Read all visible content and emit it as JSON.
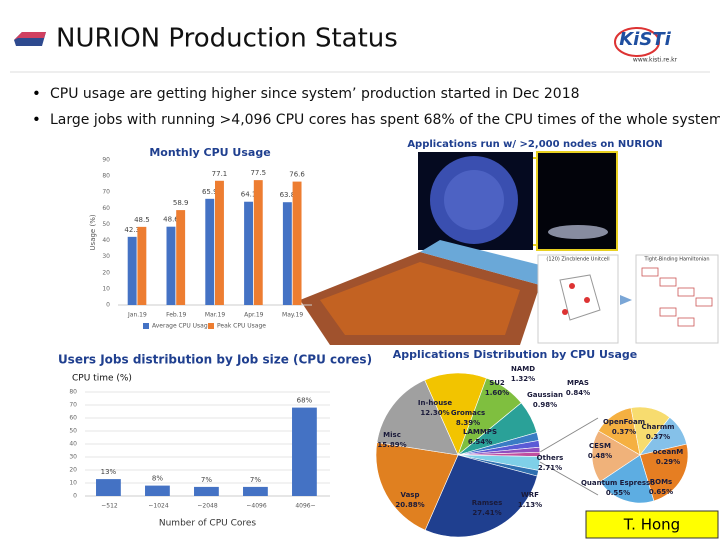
{
  "header": {
    "title": "NURION Production Status",
    "logo": "KiSTi",
    "logo_url": "www.kisti.re.kr"
  },
  "bullets": [
    "CPU usage are getting higher since system’ production started in Dec 2018",
    "Large jobs with running >4,096 CPU cores has spent 68% of the CPU times of the whole system"
  ],
  "images": {
    "caption": "Applications run w/ >2,000 nodes on NURION",
    "labels": [
      "(120) Zincblende Unitcell",
      "Tight-Binding Hamiltonian"
    ]
  },
  "footer": "T. Hong",
  "chart_data": [
    {
      "type": "bar",
      "title": "Monthly CPU Usage",
      "y_label": "Usage (%)",
      "categories": [
        "Jan.19",
        "Feb.19",
        "Mar.19",
        "Apr.19",
        "May.19"
      ],
      "series": [
        {
          "name": "Average CPU Usage",
          "color": "#4472c4",
          "values": [
            42.3,
            48.6,
            65.9,
            64.1,
            63.8
          ]
        },
        {
          "name": "Peak CPU Usage",
          "color": "#ed7d31",
          "values": [
            48.5,
            58.9,
            77.1,
            77.5,
            76.6
          ]
        }
      ],
      "ylim": [
        0,
        90
      ],
      "yticks": [
        0,
        10,
        20,
        30,
        40,
        50,
        60,
        70,
        80,
        90
      ],
      "grid": false
    },
    {
      "type": "bar",
      "title": "Users Jobs distribution by Job size (CPU cores)",
      "y_label": "CPU time (%)",
      "x_label": "Number of CPU Cores",
      "categories": [
        "~512",
        "~1024",
        "~2048",
        "~4096",
        "4096~"
      ],
      "series": [
        {
          "color": "#4472c4",
          "values": [
            13,
            8,
            7,
            7,
            68
          ],
          "value_labels": [
            "13%",
            "8%",
            "7%",
            "7%",
            "68%"
          ]
        }
      ],
      "ylim": [
        0,
        80
      ],
      "yticks": [
        0,
        10,
        20,
        30,
        40,
        50,
        60,
        70,
        80
      ],
      "grid": true
    },
    {
      "type": "pie",
      "title": "Applications Distribution by CPU Usage",
      "categories": [
        "In-house",
        "Gromacs",
        "LAMMPS",
        "SU2",
        "NAMD",
        "Gaussian",
        "MPAS",
        "Others",
        "WRF",
        "Ramses",
        "Vasp",
        "Misc"
      ],
      "values": [
        12.3,
        8.39,
        6.54,
        1.6,
        1.32,
        0.98,
        0.84,
        2.71,
        1.13,
        27.41,
        20.88,
        15.89
      ],
      "value_labels": [
        "12.30%",
        "8.39%",
        "6.54%",
        "1.60%",
        "1.32%",
        "0.98%",
        "0.84%",
        "2.71%",
        "1.13%",
        "27.41%",
        "20.88%",
        "15.89%"
      ],
      "colors": [
        "#f2c400",
        "#7fbf3f",
        "#2aa198",
        "#3a7cc4",
        "#5b5bd6",
        "#8f4fbf",
        "#c04f9f",
        "#7fd0e8",
        "#2f6fb0",
        "#1f3f8f",
        "#e08020",
        "#a0a0a0"
      ]
    },
    {
      "type": "pie",
      "categories": [
        "OpenFoam",
        "Charmm",
        "oceanM",
        "ROMs",
        "Quantum Espresso",
        "CESM"
      ],
      "values": [
        0.37,
        0.37,
        0.29,
        0.65,
        0.55,
        0.48
      ],
      "value_labels": [
        "0.37%",
        "0.37%",
        "0.29%",
        "0.65%",
        "0.55%",
        "0.48%"
      ],
      "colors": [
        "#f5b041",
        "#f7dc6f",
        "#85c1e9",
        "#e67e22",
        "#5dade2",
        "#f0b27a"
      ]
    }
  ]
}
